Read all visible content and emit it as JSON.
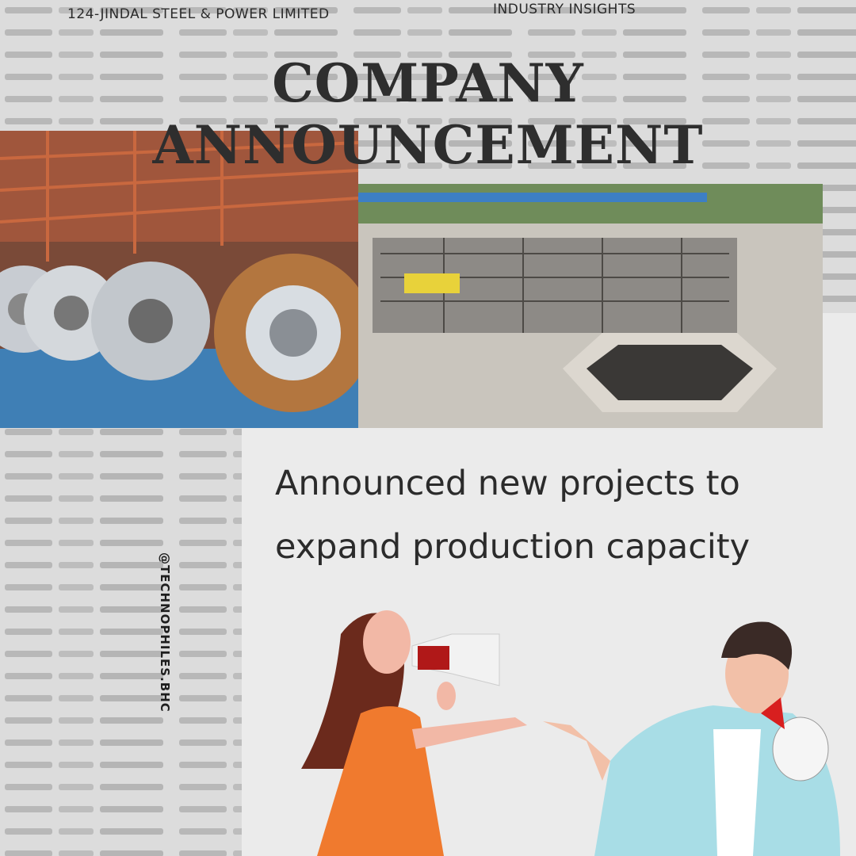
{
  "header": {
    "company": "124-JINDAL STEEL & POWER LIMITED",
    "section": "INDUSTRY INSIGHTS"
  },
  "title": "COMPANY ANNOUNCEMENT",
  "body": {
    "lines": [
      "Announced new projects to",
      "expand production capacity"
    ]
  },
  "handle": "@TECHNOPHILES.BHC"
}
